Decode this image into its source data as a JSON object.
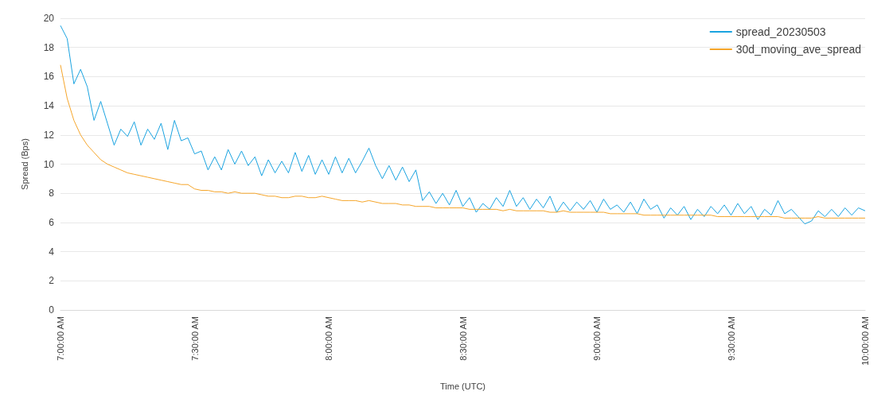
{
  "chart_data": {
    "type": "line",
    "xlabel": "Time (UTC)",
    "ylabel": "Spread (Bps)",
    "x": [
      7,
      7.025,
      7.05,
      7.075,
      7.1,
      7.125,
      7.15,
      7.175,
      7.2,
      7.225,
      7.25,
      7.275,
      7.3,
      7.325,
      7.35,
      7.375,
      7.4,
      7.425,
      7.45,
      7.475,
      7.5,
      7.525,
      7.55,
      7.575,
      7.6,
      7.625,
      7.65,
      7.675,
      7.7,
      7.725,
      7.75,
      7.775,
      7.8,
      7.825,
      7.85,
      7.875,
      7.9,
      7.925,
      7.95,
      7.975,
      8,
      8.025,
      8.05,
      8.075,
      8.1,
      8.125,
      8.15,
      8.175,
      8.2,
      8.225,
      8.25,
      8.275,
      8.3,
      8.325,
      8.35,
      8.375,
      8.4,
      8.425,
      8.45,
      8.475,
      8.5,
      8.525,
      8.55,
      8.575,
      8.6,
      8.625,
      8.65,
      8.675,
      8.7,
      8.725,
      8.75,
      8.775,
      8.8,
      8.825,
      8.85,
      8.875,
      8.9,
      8.925,
      8.95,
      8.975,
      9,
      9.025,
      9.05,
      9.075,
      9.1,
      9.125,
      9.15,
      9.175,
      9.2,
      9.225,
      9.25,
      9.275,
      9.3,
      9.325,
      9.35,
      9.375,
      9.4,
      9.425,
      9.45,
      9.475,
      9.5,
      9.525,
      9.55,
      9.575,
      9.6,
      9.625,
      9.65,
      9.675,
      9.7,
      9.725,
      9.75,
      9.775,
      9.8,
      9.825,
      9.85,
      9.875,
      9.9,
      9.925,
      9.95,
      9.975,
      10
    ],
    "series": [
      {
        "name": "spread_20230503",
        "color": "#1aa3e0",
        "values": [
          19.5,
          18.6,
          15.5,
          16.5,
          15.3,
          13.0,
          14.3,
          12.8,
          11.3,
          12.4,
          11.9,
          12.9,
          11.3,
          12.4,
          11.7,
          12.8,
          11.0,
          13.0,
          11.6,
          11.8,
          10.7,
          10.9,
          9.6,
          10.5,
          9.6,
          11.0,
          10.0,
          10.9,
          9.9,
          10.5,
          9.2,
          10.3,
          9.4,
          10.2,
          9.4,
          10.8,
          9.5,
          10.6,
          9.3,
          10.3,
          9.3,
          10.5,
          9.4,
          10.4,
          9.4,
          10.2,
          11.1,
          9.9,
          9.0,
          9.9,
          8.9,
          9.8,
          8.8,
          9.6,
          7.5,
          8.1,
          7.3,
          8.0,
          7.2,
          8.2,
          7.1,
          7.7,
          6.7,
          7.3,
          6.9,
          7.7,
          7.1,
          8.2,
          7.1,
          7.7,
          6.9,
          7.6,
          7.0,
          7.8,
          6.7,
          7.4,
          6.8,
          7.4,
          6.9,
          7.5,
          6.7,
          7.6,
          6.9,
          7.2,
          6.7,
          7.4,
          6.6,
          7.6,
          6.9,
          7.2,
          6.3,
          7.0,
          6.5,
          7.1,
          6.2,
          6.9,
          6.4,
          7.1,
          6.6,
          7.2,
          6.5,
          7.3,
          6.6,
          7.1,
          6.2,
          6.9,
          6.5,
          7.5,
          6.6,
          6.9,
          6.4,
          5.9,
          6.1,
          6.8,
          6.4,
          6.9,
          6.4,
          7.0,
          6.5,
          7.0,
          6.8
        ]
      },
      {
        "name": "30d_moving_ave_spread",
        "color": "#f5a52a",
        "values": [
          16.8,
          14.5,
          13.0,
          12.0,
          11.3,
          10.8,
          10.3,
          10.0,
          9.8,
          9.6,
          9.4,
          9.3,
          9.2,
          9.1,
          9.0,
          8.9,
          8.8,
          8.7,
          8.6,
          8.6,
          8.3,
          8.2,
          8.2,
          8.1,
          8.1,
          8.0,
          8.1,
          8.0,
          8.0,
          8.0,
          7.9,
          7.8,
          7.8,
          7.7,
          7.7,
          7.8,
          7.8,
          7.7,
          7.7,
          7.8,
          7.7,
          7.6,
          7.5,
          7.5,
          7.5,
          7.4,
          7.5,
          7.4,
          7.3,
          7.3,
          7.3,
          7.2,
          7.2,
          7.1,
          7.1,
          7.1,
          7.0,
          7.0,
          7.0,
          7.0,
          7.0,
          6.9,
          6.9,
          6.9,
          6.9,
          6.9,
          6.8,
          6.9,
          6.8,
          6.8,
          6.8,
          6.8,
          6.8,
          6.7,
          6.7,
          6.8,
          6.7,
          6.7,
          6.7,
          6.7,
          6.7,
          6.7,
          6.6,
          6.6,
          6.6,
          6.6,
          6.6,
          6.5,
          6.5,
          6.5,
          6.5,
          6.5,
          6.5,
          6.5,
          6.5,
          6.5,
          6.5,
          6.5,
          6.4,
          6.4,
          6.4,
          6.4,
          6.4,
          6.4,
          6.4,
          6.4,
          6.4,
          6.4,
          6.3,
          6.3,
          6.3,
          6.3,
          6.3,
          6.4,
          6.3,
          6.3,
          6.3,
          6.3,
          6.3,
          6.3,
          6.3
        ]
      }
    ],
    "xlim": [
      7,
      10
    ],
    "xticks": [
      {
        "value": 7,
        "label": "7:00:00 AM"
      },
      {
        "value": 7.5,
        "label": "7:30:00 AM"
      },
      {
        "value": 8,
        "label": "8:00:00 AM"
      },
      {
        "value": 8.5,
        "label": "8:30:00 AM"
      },
      {
        "value": 9,
        "label": "9:00:00 AM"
      },
      {
        "value": 9.5,
        "label": "9:30:00 AM"
      },
      {
        "value": 10,
        "label": "10:00:00 AM"
      }
    ],
    "ylim": [
      0,
      20
    ],
    "yticks": [
      0,
      2,
      4,
      6,
      8,
      10,
      12,
      14,
      16,
      18,
      20
    ],
    "grid": "y",
    "legend": "top right",
    "marker": "none",
    "line_style": "solid"
  }
}
